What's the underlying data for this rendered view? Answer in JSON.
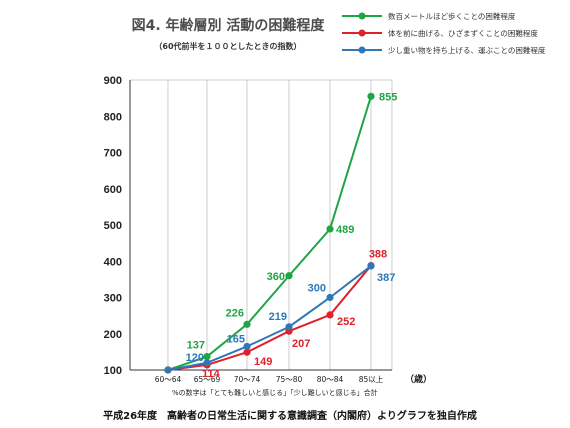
{
  "chart_data": {
    "type": "line",
    "title": "図4.  年齢層別  活動の困難程度",
    "subtitle": "（60代前半を１００としたときの指数）",
    "xlabel": "（歳）",
    "ylabel": "",
    "categories": [
      "60～64",
      "65～69",
      "70～74",
      "75～80",
      "80～84",
      "85以上"
    ],
    "ylim": [
      100,
      900
    ],
    "yticks": [
      100,
      200,
      300,
      400,
      500,
      600,
      700,
      800,
      900
    ],
    "grid": "vertical",
    "legend": "top-right",
    "note": "%の数字は「とても難しいと感じる」「少し難しいと感じる」合計",
    "source": "平成26年度　高齢者の日常生活に関する意識調査（内閣府）よりグラフを独自作成",
    "series": [
      {
        "name": "数百メートルほど歩くことの困難程度",
        "color": "#20a545",
        "values": [
          100,
          137,
          226,
          360,
          489,
          855
        ],
        "labels": [
          "",
          "137",
          "226",
          "360",
          "489",
          "855"
        ]
      },
      {
        "name": "体を前に曲げる、ひざまずくことの困難程度",
        "color": "#e0202a",
        "values": [
          100,
          114,
          149,
          207,
          252,
          388
        ],
        "labels": [
          "",
          "114",
          "149",
          "207",
          "252",
          "388"
        ]
      },
      {
        "name": "少し重い物を持ち上げる、運ぶことの困難程度",
        "color": "#2f78b8",
        "values": [
          100,
          120,
          165,
          219,
          300,
          387
        ],
        "labels": [
          "",
          "120",
          "165",
          "219",
          "300",
          "387"
        ]
      }
    ]
  }
}
